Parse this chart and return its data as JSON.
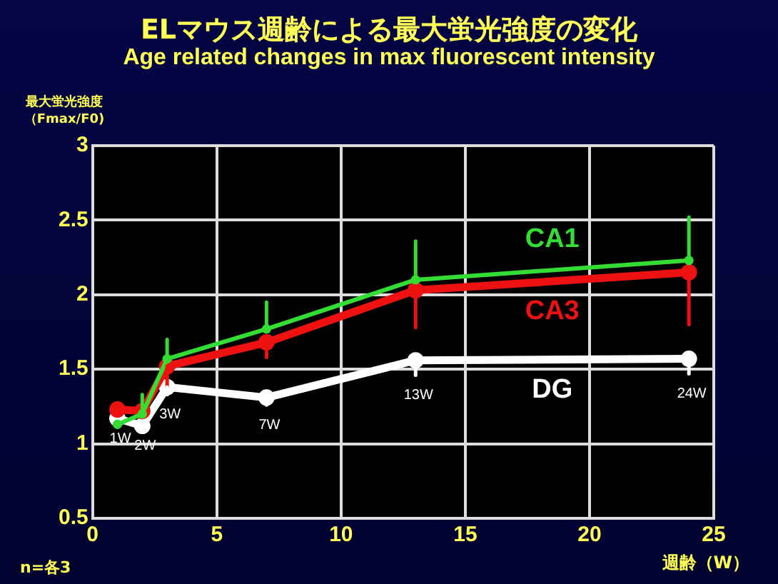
{
  "chart_data": {
    "type": "line",
    "title": "ELマウス週齢による最大蛍光強度の変化",
    "subtitle": "Age related changes in max fluorescent intensity",
    "ylabel": "最大蛍光強度（Fmax/F0)",
    "xlabel": "週齢（W）",
    "x": [
      1,
      2,
      3,
      7,
      13,
      24
    ],
    "series": [
      {
        "name": "CA1",
        "color": "#33dd33",
        "values": [
          1.13,
          1.2,
          1.57,
          1.77,
          2.1,
          2.23
        ],
        "errors": [
          null,
          [
            1.2,
            1.33
          ],
          [
            1.57,
            1.7
          ],
          [
            1.77,
            1.95
          ],
          [
            2.1,
            2.36
          ],
          [
            2.23,
            2.52
          ]
        ]
      },
      {
        "name": "CA3",
        "color": "#ee1111",
        "values": [
          1.23,
          1.22,
          1.52,
          1.68,
          2.03,
          2.15
        ],
        "errors": [
          null,
          null,
          [
            1.38,
            1.52
          ],
          [
            1.58,
            1.68
          ],
          [
            1.78,
            2.03
          ],
          [
            1.8,
            2.15
          ]
        ]
      },
      {
        "name": "DG",
        "color": "#ffffff",
        "values": [
          1.17,
          1.12,
          1.38,
          1.31,
          1.56,
          1.57
        ],
        "errors": [
          null,
          null,
          [
            1.33,
            1.38
          ],
          [
            1.26,
            1.31
          ],
          [
            1.46,
            1.56
          ],
          [
            1.47,
            1.57
          ]
        ]
      }
    ],
    "xlim": [
      0,
      25
    ],
    "xticks": [
      0,
      5,
      10,
      15,
      20,
      25
    ],
    "ylim": [
      0.5,
      3
    ],
    "yticks": [
      0.5,
      1,
      1.5,
      2,
      2.5,
      3
    ],
    "grid": true,
    "legend": false,
    "marker": "circle",
    "line_style": "solid",
    "annotations": [
      {
        "text": "1W",
        "x": 1,
        "y": 1.17
      },
      {
        "text": "2W",
        "x": 2,
        "y": 1.12
      },
      {
        "text": "3W",
        "x": 3,
        "y": 1.33
      },
      {
        "text": "7W",
        "x": 7,
        "y": 1.26
      },
      {
        "text": "13W",
        "x": 13,
        "y": 1.46
      },
      {
        "text": "24W",
        "x": 24,
        "y": 1.47
      },
      "n=各3"
    ]
  }
}
